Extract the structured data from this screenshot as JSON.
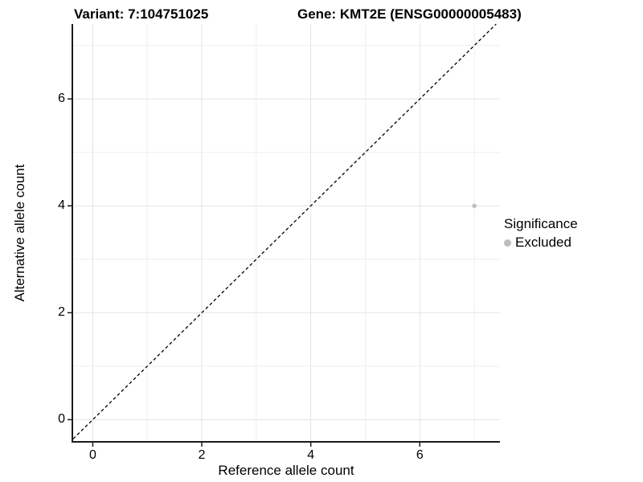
{
  "titles": {
    "variant": "Variant: 7:104751025",
    "gene": "Gene: KMT2E (ENSG00000005483)"
  },
  "axes": {
    "x_label": "Reference allele count",
    "y_label": "Alternative allele count"
  },
  "legend": {
    "title": "Significance",
    "items": [
      {
        "label": "Excluded",
        "color": "#bcbcbc"
      }
    ]
  },
  "chart_data": {
    "type": "scatter",
    "title": "Variant: 7:104751025 — Gene: KMT2E (ENSG00000005483)",
    "xlabel": "Reference allele count",
    "ylabel": "Alternative allele count",
    "xlim": [
      -0.36,
      7.47
    ],
    "ylim": [
      -0.4,
      7.4
    ],
    "x_ticks": [
      0,
      2,
      4,
      6
    ],
    "y_ticks": [
      0,
      2,
      4,
      6
    ],
    "x_minor_gridlines": [
      1,
      3,
      5,
      7
    ],
    "y_minor_gridlines": [
      1,
      3,
      5,
      7
    ],
    "grid": true,
    "legend_position": "right",
    "identity_line": {
      "style": "dashed",
      "equation": "y = x"
    },
    "series": [
      {
        "name": "Excluded",
        "points": [
          {
            "x": 7,
            "y": 4
          }
        ],
        "color": "#bcbcbc"
      }
    ],
    "colors": {
      "grid_major": "#e3e3e3",
      "grid_minor": "#efefef",
      "axis_line": "#1a1a1a",
      "point": "#bcbcbc",
      "identity_line": "#000000",
      "background": "#ffffff"
    }
  }
}
